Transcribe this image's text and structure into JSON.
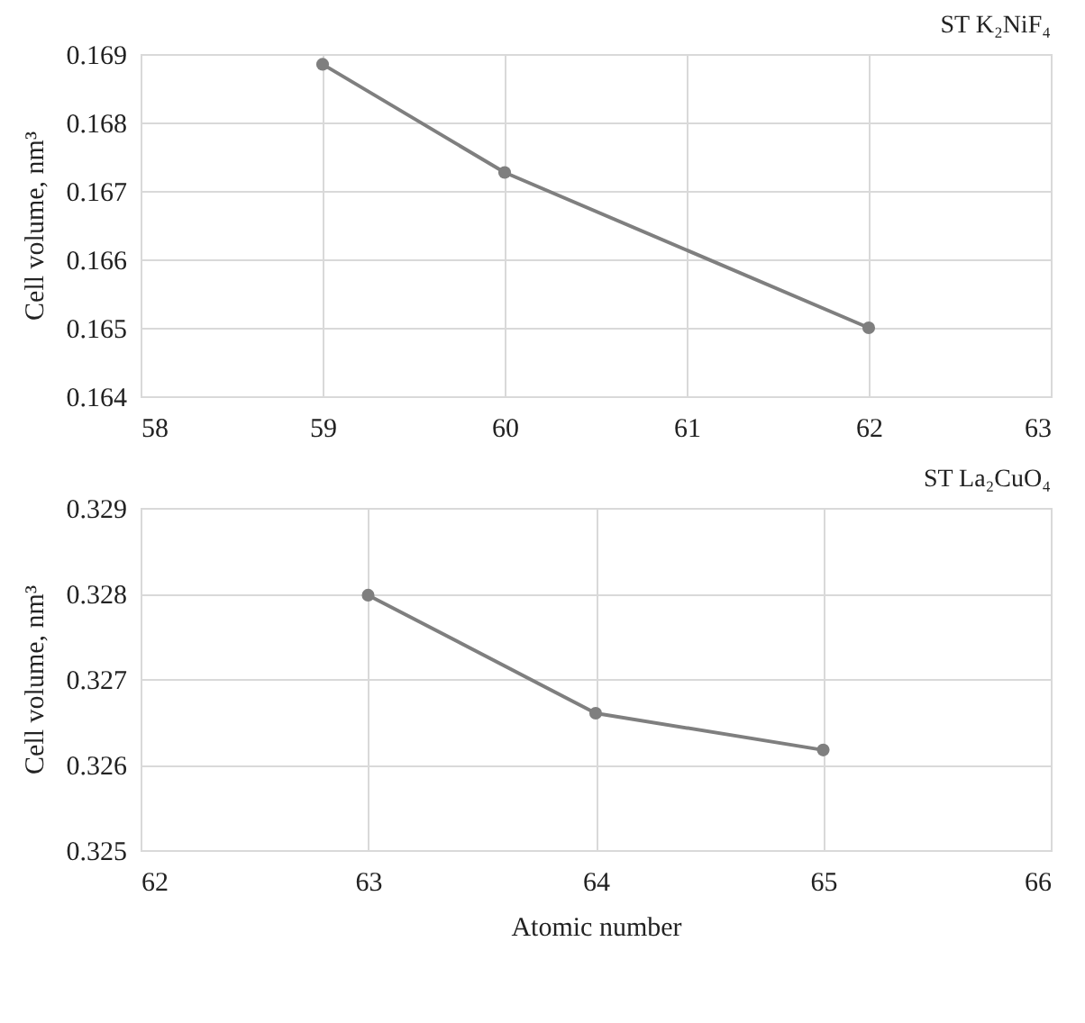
{
  "chart_data": [
    {
      "type": "line",
      "title": "ST K₂NiF₄",
      "ylabel": "Cell volume, nm³",
      "x": [
        59,
        60,
        62
      ],
      "series": [
        {
          "color": "#7f7f7f",
          "values": [
            0.16885,
            0.16727,
            0.165
          ]
        }
      ],
      "xlim": [
        58,
        63
      ],
      "xticks": [
        58,
        59,
        60,
        61,
        62,
        63
      ],
      "ylim": [
        0.164,
        0.169
      ],
      "yticks": [
        0.164,
        0.165,
        0.166,
        0.167,
        0.168,
        0.169
      ],
      "grid": true,
      "marker": "circle"
    },
    {
      "type": "line",
      "title": "ST La₂CuO₄",
      "ylabel": "Cell volume, nm³",
      "xlabel": "Atomic number",
      "x": [
        63,
        64,
        65
      ],
      "series": [
        {
          "color": "#7f7f7f",
          "values": [
            0.32798,
            0.3266,
            0.32617
          ]
        }
      ],
      "xlim": [
        62,
        66
      ],
      "xticks": [
        62,
        63,
        64,
        65,
        66
      ],
      "ylim": [
        0.325,
        0.329
      ],
      "yticks": [
        0.325,
        0.326,
        0.327,
        0.328,
        0.329
      ],
      "grid": true,
      "marker": "circle"
    }
  ]
}
